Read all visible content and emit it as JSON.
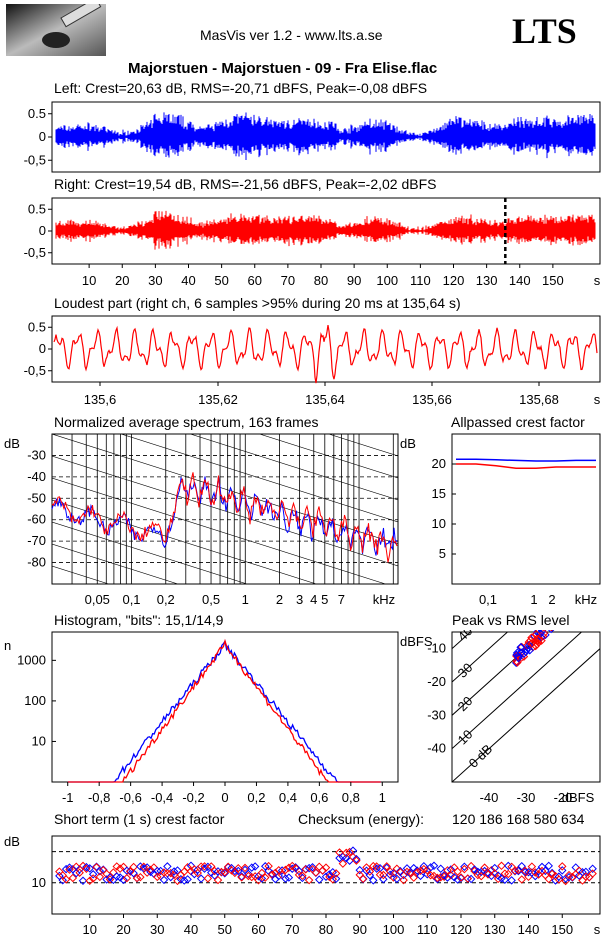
{
  "header": {
    "app_title": "MasVis ver 1.2 - www.lts.a.se",
    "logo_text": "LTS",
    "file_title": "Majorstuen - Majorstuen - 09 - Fra Elise.flac"
  },
  "panels": {
    "left": {
      "label": "Left: Crest=20,63 dB, RMS=-20,71 dBFS, Peak=-0,08 dBFS",
      "yticks": [
        "0.5",
        "0",
        "-0,5"
      ]
    },
    "right": {
      "label": "Right: Crest=19,54 dB, RMS=-21,56 dBFS, Peak=-2,02 dBFS",
      "yticks": [
        "0.5",
        "0",
        "-0,5"
      ],
      "xticks": [
        "10",
        "20",
        "30",
        "40",
        "50",
        "60",
        "70",
        "80",
        "90",
        "100",
        "110",
        "120",
        "130",
        "140",
        "150"
      ],
      "xunit": "s",
      "marker_s": 135.64
    },
    "loudest": {
      "label": "Loudest part (right ch, 6 samples >95% during 20 ms at 135,64 s)",
      "yticks": [
        "0.5",
        "0",
        "-0,5"
      ],
      "xticks": [
        "135,6",
        "135,62",
        "135,64",
        "135,66",
        "135,68"
      ],
      "xunit": "s"
    },
    "spectrum": {
      "label": "Normalized average spectrum, 163 frames",
      "ylabel": "dB",
      "yticks": [
        "-30",
        "-40",
        "-50",
        "-60",
        "-70",
        "-80"
      ],
      "xticks": [
        "0,05",
        "0,1",
        "0,2",
        "0,5",
        "1",
        "2",
        "3",
        "4",
        "5",
        "7"
      ],
      "xunit": "kHz"
    },
    "allpass": {
      "label": "Allpassed crest factor",
      "ylabel": "dB",
      "yticks": [
        "20",
        "15",
        "10",
        "5"
      ],
      "xticks": [
        "0,1",
        "1",
        "2"
      ],
      "xunit": "kHz"
    },
    "histogram": {
      "label": "Histogram, \"bits\": 15,1/14,9",
      "ylabel": "n",
      "yticks": [
        "1000",
        "100",
        "10"
      ],
      "xticks": [
        "-1",
        "-0,8",
        "-0,6",
        "-0,4",
        "-0,2",
        "0",
        "0,2",
        "0,4",
        "0,6",
        "0,8",
        "1"
      ]
    },
    "peakrms": {
      "label": "Peak vs RMS level",
      "ylabel": "dBFS",
      "yticks": [
        "-10",
        "-20",
        "-30",
        "-40"
      ],
      "xticks": [
        "-40",
        "-30",
        "-20"
      ],
      "xunit": "dBFS",
      "diag_labels": [
        "40",
        "30",
        "20",
        "10",
        "0 dB"
      ]
    },
    "shortterm": {
      "label": "Short term (1 s) crest factor",
      "checksum_label": "Checksum (energy):",
      "checksum_value": "120 186 168 580 634",
      "ylabel": "dB",
      "yticks": [
        "10"
      ],
      "xticks": [
        "10",
        "20",
        "30",
        "40",
        "50",
        "60",
        "70",
        "80",
        "90",
        "100",
        "110",
        "120",
        "130",
        "140",
        "150"
      ],
      "xunit": "s"
    }
  },
  "chart_data": [
    {
      "type": "line",
      "title": "Left",
      "series": [
        {
          "name": "Left",
          "color": "#0000ff"
        }
      ],
      "ylim": [
        -1,
        1
      ],
      "xlim": [
        0,
        160
      ]
    },
    {
      "type": "line",
      "title": "Right",
      "series": [
        {
          "name": "Right",
          "color": "#ff0000"
        }
      ],
      "ylim": [
        -1,
        1
      ],
      "xlim": [
        0,
        160
      ]
    },
    {
      "type": "line",
      "title": "Loudest part",
      "xlim": [
        135.585,
        135.69
      ],
      "ylim": [
        -1,
        1
      ]
    },
    {
      "type": "line",
      "title": "Normalized average spectrum",
      "xlim_khz": [
        0.02,
        22
      ],
      "ylim": [
        -90,
        -20
      ],
      "series": [
        {
          "name": "Left",
          "color": "#0000ff"
        },
        {
          "name": "Right",
          "color": "#ff0000"
        }
      ]
    },
    {
      "type": "line",
      "title": "Allpassed crest factor",
      "ylim": [
        0,
        25
      ],
      "series": [
        {
          "values_db": [
            20.8,
            20.8,
            20.7,
            20.6,
            20.5,
            20.5,
            20.6,
            20.6
          ],
          "color": "#0000ff"
        },
        {
          "values_db": [
            20.0,
            20.0,
            19.7,
            19.3,
            19.3,
            19.5,
            19.5,
            19.5
          ],
          "color": "#ff0000"
        }
      ]
    },
    {
      "type": "line",
      "title": "Histogram",
      "xlim": [
        -1.1,
        1.1
      ],
      "ylim_log": [
        1,
        5000
      ]
    },
    {
      "type": "scatter",
      "title": "Peak vs RMS level",
      "xlim": [
        -50,
        -10
      ],
      "ylim": [
        -50,
        -5
      ]
    },
    {
      "type": "scatter",
      "title": "Short term crest factor",
      "xlim": [
        0,
        160
      ],
      "ylim": [
        0,
        25
      ],
      "grid_y": [
        10,
        20
      ]
    }
  ],
  "colors": {
    "left": "#0000ff",
    "right": "#ff0000"
  }
}
